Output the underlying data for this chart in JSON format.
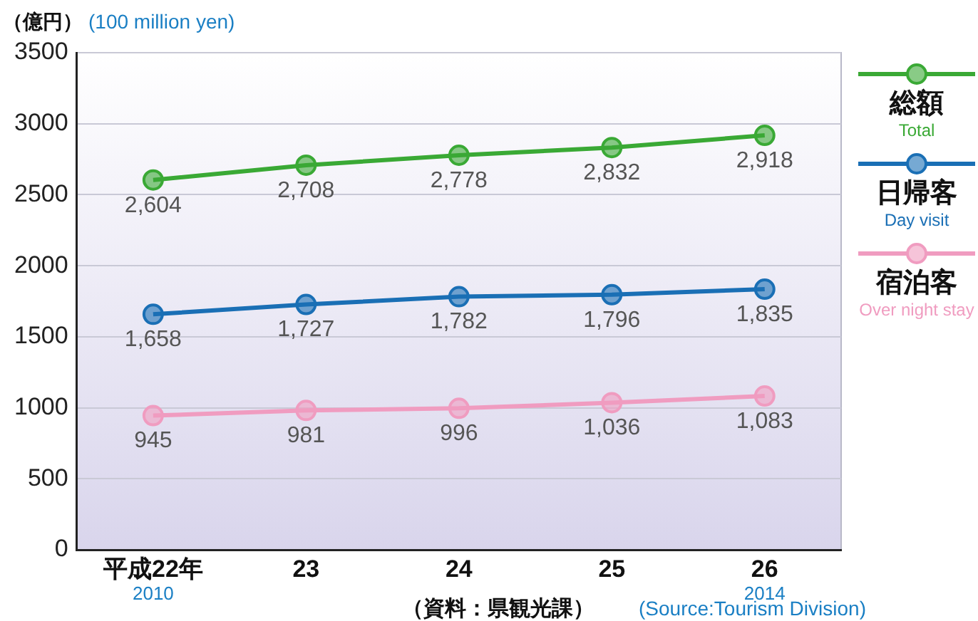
{
  "chart_data": {
    "type": "line",
    "ylabel": "（億円）",
    "categories": [
      "平成22年\n2010",
      "23",
      "24",
      "25",
      "26\n2014"
    ],
    "series": [
      {
        "name": "総額\nTotal",
        "color": "#3aa935",
        "values": [
          2604,
          2708,
          2778,
          2832,
          2918
        ],
        "value_labels": [
          "2,604",
          "2,708",
          "2,778",
          "2,832",
          "2,918"
        ]
      },
      {
        "name": "日帰客\nDay visit",
        "color": "#1a6fb5",
        "values": [
          1658,
          1727,
          1782,
          1796,
          1835
        ],
        "value_labels": [
          "1,658",
          "1,727",
          "1,782",
          "1,796",
          "1,835"
        ]
      },
      {
        "name": "宿泊客\nOver night stay",
        "color": "#f09cc0",
        "values": [
          945,
          981,
          996,
          1036,
          1083
        ],
        "value_labels": [
          "945",
          "981",
          "996",
          "1,036",
          "1,083"
        ]
      }
    ],
    "ylim": [
      0,
      3500
    ],
    "yticks": [
      0,
      500,
      1000,
      1500,
      2000,
      2500,
      3000,
      3500
    ],
    "grid": "y",
    "legend": "right",
    "marker": "circle",
    "line_style": "solid",
    "annotations": [
      "(100 million yen)",
      "（資料：県観光課）",
      "(Source:Tourism Division)"
    ]
  }
}
